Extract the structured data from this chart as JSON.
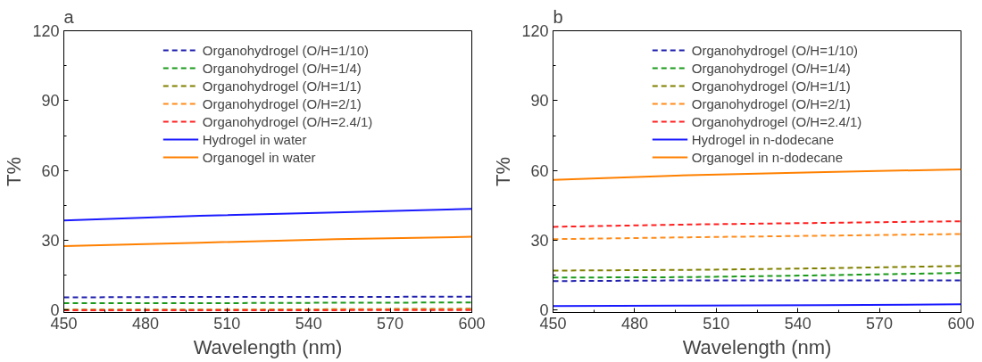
{
  "chart_data": [
    {
      "type": "line",
      "title": "a",
      "xlabel": "Wavelength (nm)",
      "ylabel": "T%",
      "x": [
        450,
        500,
        550,
        600
      ],
      "xlim": [
        450,
        600
      ],
      "xticks": [
        450,
        480,
        510,
        540,
        570,
        600
      ],
      "ylim": [
        -1,
        120
      ],
      "yticks": [
        0,
        30,
        60,
        90,
        120
      ],
      "grid": false,
      "legend": "top",
      "series": [
        {
          "name": "Organohydrogel (O/H=1/10)",
          "color": "#2020b0",
          "line_style": "dashed",
          "values": [
            5.5,
            5.7,
            5.7,
            5.8
          ]
        },
        {
          "name": "Organohydrogel (O/H=1/4)",
          "color": "#1a9a1a",
          "line_style": "dashed",
          "values": [
            3.0,
            3.0,
            3.2,
            3.3
          ]
        },
        {
          "name": "Organohydrogel (O/H=1/1)",
          "color": "#808000",
          "line_style": "dashed",
          "values": [
            0.2,
            0.2,
            0.4,
            0.6
          ]
        },
        {
          "name": "Organohydrogel (O/H=2/1)",
          "color": "#ff8c1a",
          "line_style": "dashed",
          "values": [
            0.1,
            0.1,
            0.2,
            0.3
          ]
        },
        {
          "name": "Organohydrogel (O/H=2.4/1)",
          "color": "#ff2020",
          "line_style": "dashed",
          "values": [
            0.0,
            0.0,
            0.0,
            0.1
          ]
        },
        {
          "name": "Hydrogel in water",
          "color": "#1a1aff",
          "line_style": "solid",
          "values": [
            38.5,
            40.5,
            42.0,
            43.5
          ]
        },
        {
          "name": "Organogel in water",
          "color": "#ff8000",
          "line_style": "solid",
          "values": [
            27.5,
            29.0,
            30.5,
            31.5
          ]
        }
      ]
    },
    {
      "type": "line",
      "title": "b",
      "xlabel": "Wavelength (nm)",
      "ylabel": "T%",
      "x": [
        450,
        500,
        550,
        600
      ],
      "xlim": [
        450,
        600
      ],
      "xticks": [
        450,
        480,
        510,
        540,
        570,
        600
      ],
      "ylim": [
        -1,
        120
      ],
      "yticks": [
        0,
        30,
        60,
        90,
        120
      ],
      "grid": false,
      "legend": "top",
      "series": [
        {
          "name": "Organohydrogel (O/H=1/10)",
          "color": "#2020b0",
          "line_style": "dashed",
          "values": [
            12.5,
            12.8,
            12.8,
            12.8
          ]
        },
        {
          "name": "Organohydrogel (O/H=1/4)",
          "color": "#1a9a1a",
          "line_style": "dashed",
          "values": [
            14.0,
            14.2,
            15.0,
            16.0
          ]
        },
        {
          "name": "Organohydrogel (O/H=1/1)",
          "color": "#808000",
          "line_style": "dashed",
          "values": [
            17.0,
            17.3,
            18.0,
            19.0
          ]
        },
        {
          "name": "Organohydrogel (O/H=2/1)",
          "color": "#ff8c1a",
          "line_style": "dashed",
          "values": [
            30.5,
            31.3,
            32.0,
            32.7
          ]
        },
        {
          "name": "Organohydrogel (O/H=2.4/1)",
          "color": "#ff2020",
          "line_style": "dashed",
          "values": [
            35.8,
            36.8,
            37.5,
            38.2
          ]
        },
        {
          "name": "Hydrogel in n-dodecane",
          "color": "#1a1aff",
          "line_style": "solid",
          "values": [
            1.8,
            2.0,
            2.2,
            2.5
          ]
        },
        {
          "name": "Organogel in n-dodecane",
          "color": "#ff8000",
          "line_style": "solid",
          "values": [
            56.0,
            58.0,
            59.3,
            60.5
          ]
        }
      ]
    }
  ]
}
